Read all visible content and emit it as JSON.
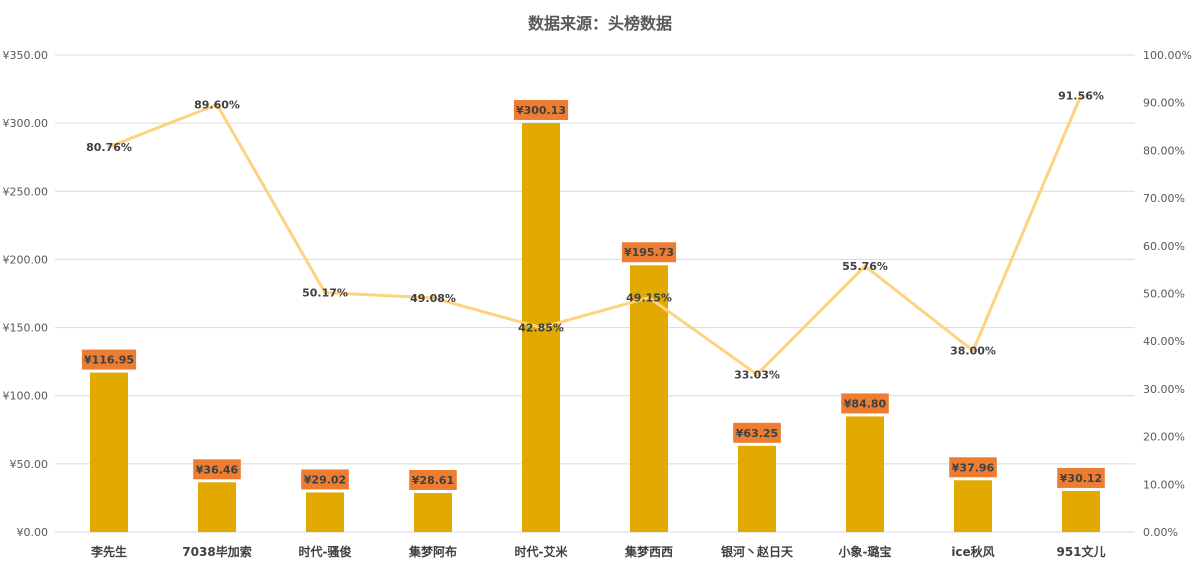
{
  "chart_data": {
    "type": "bar",
    "title": "数据来源：头榜数据",
    "categories": [
      "李先生",
      "7038毕加索",
      "时代-骚俊",
      "集梦阿布",
      "时代-艾米",
      "集梦西西",
      "银河丶赵日天",
      "小象-璐宝",
      "ice秋风",
      "951文儿"
    ],
    "series": [
      {
        "type": "bar",
        "axis": "left",
        "values": [
          116.95,
          36.46,
          29.02,
          28.61,
          300.13,
          195.73,
          63.25,
          84.8,
          37.96,
          30.12
        ],
        "labels": [
          "¥116.95",
          "¥36.46",
          "¥29.02",
          "¥28.61",
          "¥300.13",
          "¥195.73",
          "¥63.25",
          "¥84.80",
          "¥37.96",
          "¥30.12"
        ],
        "color": "#E2AA00",
        "label_bg": "#ED7D31"
      },
      {
        "type": "line",
        "axis": "right",
        "values": [
          80.76,
          89.6,
          50.17,
          49.08,
          42.85,
          49.15,
          33.03,
          55.76,
          38.0,
          91.56
        ],
        "labels": [
          "80.76%",
          "89.60%",
          "50.17%",
          "49.08%",
          "42.85%",
          "49.15%",
          "33.03%",
          "55.76%",
          "38.00%",
          "91.56%"
        ],
        "color": "#FFD27F"
      }
    ],
    "y_left": {
      "ylim": [
        0,
        350
      ],
      "ticks": [
        0,
        50,
        100,
        150,
        200,
        250,
        300,
        350
      ],
      "tick_labels": [
        "¥0.00",
        "¥50.00",
        "¥100.00",
        "¥150.00",
        "¥200.00",
        "¥250.00",
        "¥300.00",
        "¥350.00"
      ]
    },
    "y_right": {
      "ylim": [
        0,
        100
      ],
      "ticks": [
        0,
        10,
        20,
        30,
        40,
        50,
        60,
        70,
        80,
        90,
        100
      ],
      "tick_labels": [
        "0.00%",
        "10.00%",
        "20.00%",
        "30.00%",
        "40.00%",
        "50.00%",
        "60.00%",
        "70.00%",
        "80.00%",
        "90.00%",
        "100.00%"
      ]
    },
    "grid": true,
    "legend": "none"
  }
}
